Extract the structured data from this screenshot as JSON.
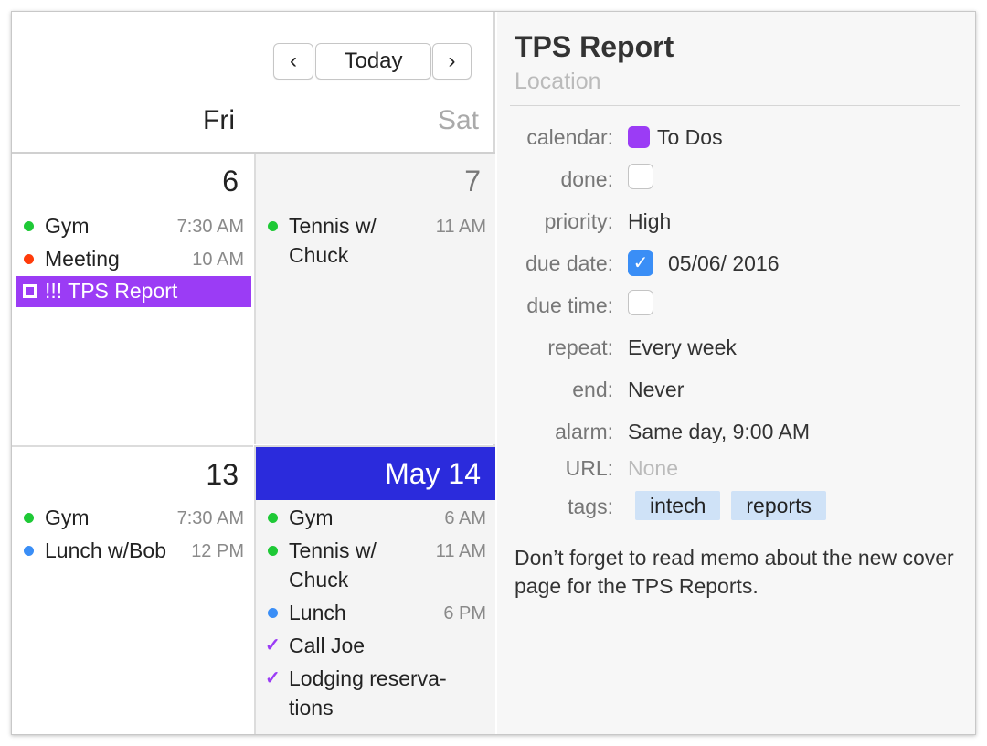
{
  "nav": {
    "prev": "‹",
    "today": "Today",
    "next": "›"
  },
  "days": {
    "fri": "Fri",
    "sat": "Sat"
  },
  "weeks": [
    {
      "cells": [
        {
          "day": "6",
          "events": [
            {
              "title": "Gym",
              "time": "7:30 AM",
              "color": "#1ec936"
            },
            {
              "title": "Meeting",
              "time": "10 AM",
              "color": "#ff3b0a"
            }
          ],
          "todo": "!!! TPS Report"
        },
        {
          "day": "7",
          "events": [
            {
              "title": "Tennis w/ Chuck",
              "time": "11 AM",
              "color": "#1ec936"
            }
          ]
        }
      ]
    },
    {
      "cells": [
        {
          "day": "13",
          "events": [
            {
              "title": "Gym",
              "time": "7:30 AM",
              "color": "#1ec936"
            },
            {
              "title": "Lunch w/Bob",
              "time": "12 PM",
              "color": "#3a8ef6"
            }
          ]
        },
        {
          "day": "May 14",
          "events": [
            {
              "title": "Gym",
              "time": "6 AM",
              "color": "#1ec936"
            },
            {
              "title": "Tennis w/ Chuck",
              "time": "11 AM",
              "color": "#1ec936"
            },
            {
              "title": "Lunch",
              "time": "6 PM",
              "color": "#3a8ef6"
            }
          ],
          "todos": [
            "Call Joe",
            "Lodging reserva- tions"
          ]
        }
      ]
    }
  ],
  "detail": {
    "title": "TPS Report",
    "location_placeholder": "Location",
    "calendar_label": "calendar:",
    "calendar": "To Dos",
    "calendar_color": "#9b3cf5",
    "done_label": "done:",
    "done": false,
    "priority_label": "priority:",
    "priority": "High",
    "due_date_label": "due date:",
    "due_date_checked": true,
    "due_date": "05/06/ 2016",
    "due_time_label": "due time:",
    "due_time_checked": false,
    "repeat_label": "repeat:",
    "repeat": "Every week",
    "end_label": "end:",
    "end": "Never",
    "alarm_label": "alarm:",
    "alarm": "Same day, 9:00 AM",
    "url_label": "URL:",
    "url": "None",
    "tags_label": "tags:",
    "tags": [
      "intech",
      "reports"
    ],
    "notes": "Don’t forget to read memo about the new cover page for the TPS Reports."
  }
}
